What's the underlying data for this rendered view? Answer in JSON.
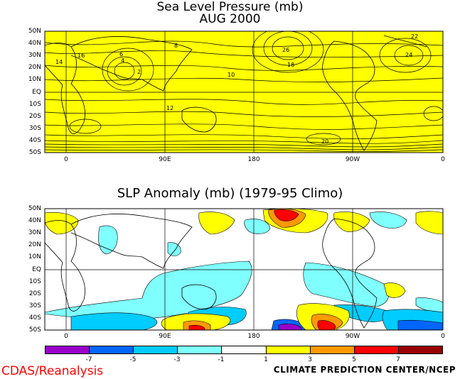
{
  "top_map": {
    "title": "Sea Level Pressure (mb)",
    "subtitle": "AUG 2000",
    "fill_color": "#ffff00",
    "contour_labels": [
      "26",
      "24",
      "22",
      "18",
      "16",
      "14",
      "12",
      "10",
      "8",
      "6",
      "4",
      "2",
      "20"
    ]
  },
  "bottom_map": {
    "title": "SLP Anomaly (mb) (1979-95 Climo)"
  },
  "lat_labels": [
    "50N",
    "40N",
    "30N",
    "20N",
    "10N",
    "EQ",
    "10S",
    "20S",
    "30S",
    "40S",
    "50S"
  ],
  "lon_labels": [
    "0",
    "90E",
    "180",
    "90W",
    "0"
  ],
  "colorbar": {
    "colors": [
      "#9900cc",
      "#0066ff",
      "#00ccff",
      "#80ffff",
      "#ffffff",
      "#ffff00",
      "#ff9900",
      "#ff0000",
      "#990000"
    ],
    "labels": [
      "-7",
      "-5",
      "-3",
      "-1",
      "1",
      "3",
      "5",
      "7"
    ]
  },
  "credit": "CDAS/Reanalysis",
  "producer": "CLIMATE PREDICTION CENTER/NCEP"
}
